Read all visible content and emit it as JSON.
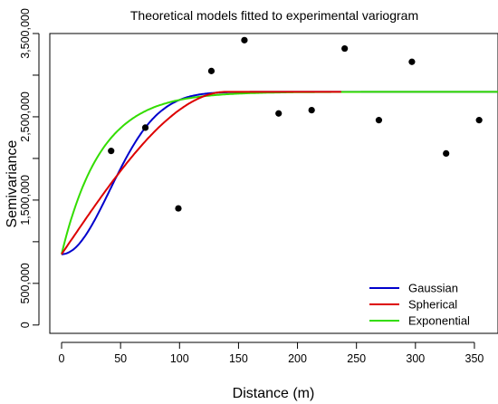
{
  "chart_data": {
    "type": "scatter",
    "title": "Theoretical models fitted to experimental variogram",
    "xlabel": "Distance (m)",
    "ylabel": "Semivariance",
    "xlim": [
      -10,
      370
    ],
    "ylim": [
      -100000,
      3500000
    ],
    "x_ticks": [
      0,
      50,
      100,
      150,
      200,
      250,
      300,
      350
    ],
    "x_tick_labels": [
      "0",
      "50",
      "100",
      "150",
      "200",
      "250",
      "300",
      "350"
    ],
    "y_ticks": [
      0,
      500000,
      1500000,
      2500000,
      3500000
    ],
    "y_tick_labels": [
      "0",
      "500,000",
      "1,500,000",
      "2,500,000",
      "3,500,000"
    ],
    "points": {
      "x": [
        42,
        71,
        99,
        127,
        155,
        184,
        212,
        240,
        269,
        297,
        326,
        354
      ],
      "y": [
        2090000,
        2370000,
        1400000,
        3050000,
        3420000,
        2540000,
        2580000,
        3320000,
        2460000,
        3160000,
        2060000,
        2460000
      ],
      "color": "#000000"
    },
    "models": [
      {
        "name": "Gaussian",
        "kind": "gaussian",
        "nugget": 850000,
        "sill": 2800000,
        "range": 100,
        "color": "#0000cc",
        "x_end": 370
      },
      {
        "name": "Spherical",
        "kind": "spherical",
        "nugget": 850000,
        "sill": 2800000,
        "range": 140,
        "color": "#dd0000",
        "x_end": 237
      },
      {
        "name": "Exponential",
        "kind": "exponential",
        "nugget": 850000,
        "sill": 2800000,
        "range": 100,
        "color": "#33dd00",
        "x_end": 370
      }
    ],
    "legend": {
      "position": "bottom-right",
      "entries": [
        "Gaussian",
        "Spherical",
        "Exponential"
      ]
    },
    "grid": false
  }
}
